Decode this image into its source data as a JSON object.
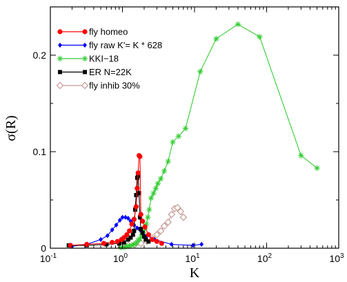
{
  "chart_data": {
    "type": "line",
    "xlabel": "K",
    "ylabel": "σ(R)",
    "xscale": "log",
    "xlim": [
      0.1,
      1000
    ],
    "ylim": [
      0,
      0.25
    ],
    "grid": false,
    "legend_position": "top-left",
    "x_ticks": [
      {
        "value": 0.1,
        "base": "10",
        "exp": "-1"
      },
      {
        "value": 1,
        "base": "10",
        "exp": "0"
      },
      {
        "value": 10,
        "base": "10",
        "exp": "1"
      },
      {
        "value": 100,
        "base": "10",
        "exp": "2"
      },
      {
        "value": 1000,
        "base": "10",
        "exp": "3"
      }
    ],
    "y_ticks": [
      {
        "value": 0,
        "label": "0"
      },
      {
        "value": 0.1,
        "label": "0.1"
      },
      {
        "value": 0.2,
        "label": "0.2"
      }
    ],
    "series": [
      {
        "name": "fly homeo",
        "color": "#ff0000",
        "marker": "circle",
        "x": [
          0.19,
          0.32,
          0.55,
          0.72,
          0.85,
          0.97,
          1.05,
          1.15,
          1.25,
          1.35,
          1.45,
          1.55,
          1.6,
          1.65,
          1.7,
          1.75,
          1.8,
          1.9,
          2.05,
          2.3,
          2.6,
          3.0,
          3.5
        ],
        "y": [
          0.003,
          0.004,
          0.005,
          0.006,
          0.007,
          0.009,
          0.011,
          0.014,
          0.018,
          0.025,
          0.03,
          0.043,
          0.062,
          0.078,
          0.096,
          0.095,
          0.035,
          0.028,
          0.022,
          0.014,
          0.009,
          0.007,
          0.005
        ]
      },
      {
        "name": "fly raw K'= K * 628",
        "color": "#0000ff",
        "marker": "diamond",
        "x": [
          0.2,
          0.32,
          0.5,
          0.62,
          0.72,
          0.82,
          0.92,
          1.0,
          1.1,
          1.2,
          1.3,
          1.45,
          1.6,
          1.75,
          1.9,
          2.2,
          2.8,
          4.8,
          9.5,
          12.5
        ],
        "y": [
          0.002,
          0.004,
          0.009,
          0.013,
          0.019,
          0.024,
          0.029,
          0.032,
          0.032,
          0.031,
          0.028,
          0.024,
          0.021,
          0.019,
          0.016,
          0.013,
          0.009,
          0.004,
          0.003,
          0.004
        ]
      },
      {
        "name": "KKI−18",
        "color": "#33cc33",
        "marker": "asterisk",
        "x": [
          0.95,
          1.05,
          1.15,
          1.25,
          1.35,
          1.45,
          1.55,
          1.65,
          1.75,
          1.85,
          1.95,
          2.05,
          2.15,
          2.25,
          2.35,
          2.5,
          2.7,
          2.9,
          3.1,
          3.4,
          3.8,
          4.3,
          5.0,
          6.0,
          7.5,
          12,
          20,
          40,
          80,
          300,
          500
        ],
        "y": [
          0.001,
          0.001,
          0.002,
          0.002,
          0.003,
          0.004,
          0.005,
          0.008,
          0.01,
          0.014,
          0.016,
          0.02,
          0.025,
          0.032,
          0.04,
          0.052,
          0.057,
          0.062,
          0.067,
          0.072,
          0.08,
          0.09,
          0.11,
          0.116,
          0.124,
          0.183,
          0.217,
          0.232,
          0.219,
          0.096,
          0.083
        ]
      },
      {
        "name": "ER N=22K",
        "color": "#000000",
        "marker": "square",
        "x": [
          0.18,
          0.32,
          0.6,
          0.9,
          1.05,
          1.2,
          1.3,
          1.4,
          1.45,
          1.5,
          1.55,
          1.6,
          1.65,
          1.7,
          1.75,
          1.8,
          1.9,
          2.0,
          2.1,
          2.3
        ],
        "y": [
          0.003,
          0.003,
          0.004,
          0.005,
          0.006,
          0.009,
          0.011,
          0.014,
          0.018,
          0.04,
          0.055,
          0.073,
          0.075,
          0.057,
          0.032,
          0.02,
          0.016,
          0.012,
          0.009,
          0.007
        ]
      },
      {
        "name": "fly inhib 30%",
        "color": "#c49a94",
        "marker": "open-diamond",
        "x": [
          0.95,
          1.2,
          1.5,
          1.8,
          2.2,
          2.6,
          3.0,
          3.4,
          3.8,
          4.3,
          4.8,
          5.3,
          5.8,
          6.4,
          7.0
        ],
        "y": [
          0.002,
          0.003,
          0.004,
          0.005,
          0.007,
          0.01,
          0.014,
          0.018,
          0.023,
          0.027,
          0.035,
          0.041,
          0.042,
          0.038,
          0.032
        ]
      }
    ]
  }
}
